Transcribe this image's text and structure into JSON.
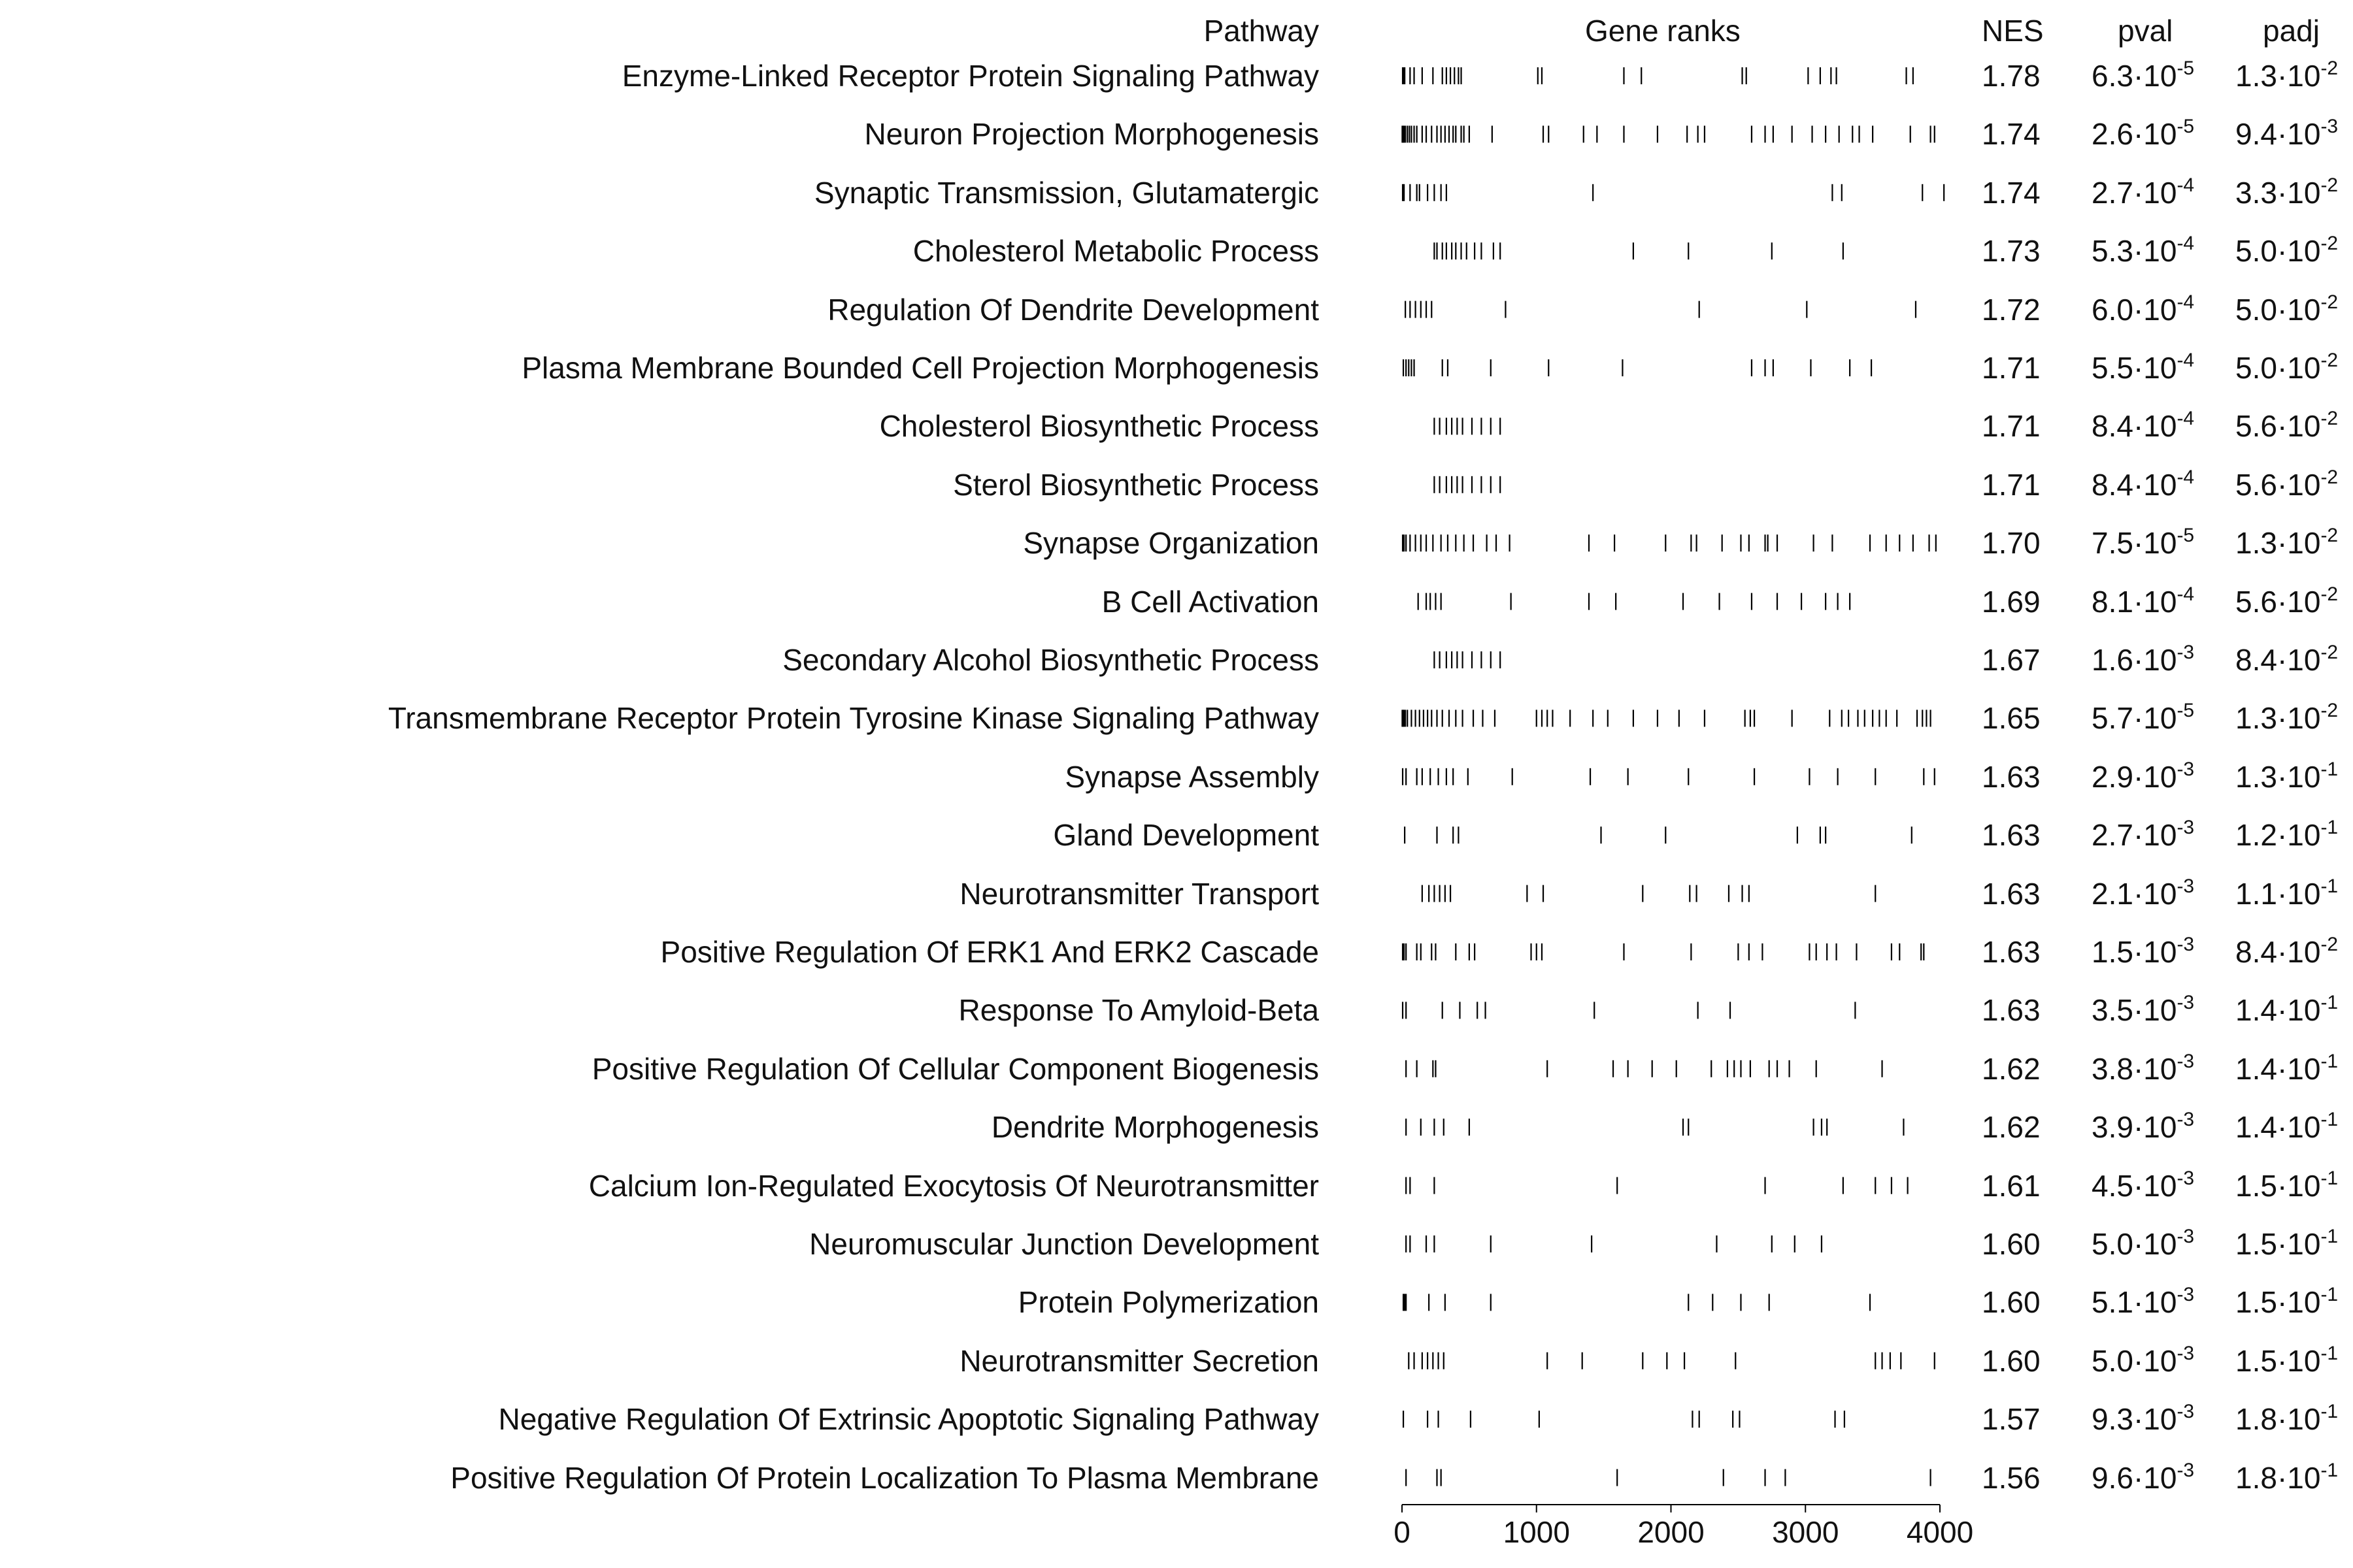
{
  "chart_data": {
    "type": "table",
    "x_axis": {
      "ticks": [
        0,
        1000,
        2000,
        3000,
        4000
      ],
      "xlim": [
        0,
        4000
      ]
    },
    "headers": {
      "pathway": "Pathway",
      "ranks": "Gene ranks",
      "nes": "NES",
      "pval": "pval",
      "padj": "padj"
    },
    "rows": [
      {
        "pathway": "Enzyme-Linked Receptor Protein Signaling Pathway",
        "nes": "1.78",
        "pval": {
          "m": "6.3",
          "e": "-5"
        },
        "padj": {
          "m": "1.3",
          "e": "-2"
        },
        "ranks": [
          5,
          12,
          20,
          60,
          90,
          150,
          230,
          300,
          330,
          360,
          390,
          420,
          440,
          1010,
          1040,
          1650,
          1780,
          2530,
          2560,
          3020,
          3110,
          3190,
          3230,
          3750,
          3800
        ]
      },
      {
        "pathway": "Neuron Projection Morphogenesis",
        "nes": "1.74",
        "pval": {
          "m": "2.6",
          "e": "-5"
        },
        "padj": {
          "m": "9.4",
          "e": "-3"
        },
        "ranks": [
          2,
          8,
          15,
          25,
          40,
          55,
          70,
          90,
          110,
          150,
          180,
          220,
          260,
          290,
          320,
          350,
          380,
          400,
          440,
          460,
          500,
          670,
          1050,
          1090,
          1350,
          1450,
          1650,
          1900,
          2120,
          2200,
          2250,
          2600,
          2700,
          2760,
          2900,
          3050,
          3150,
          3250,
          3350,
          3400,
          3500,
          3780,
          3930,
          3960
        ]
      },
      {
        "pathway": "Synaptic Transmission, Glutamatergic",
        "nes": "1.74",
        "pval": {
          "m": "2.7",
          "e": "-4"
        },
        "padj": {
          "m": "3.3",
          "e": "-2"
        },
        "ranks": [
          5,
          15,
          60,
          110,
          130,
          190,
          240,
          290,
          330,
          1420,
          3200,
          3270,
          3870,
          4030
        ]
      },
      {
        "pathway": "Cholesterol Metabolic Process",
        "nes": "1.73",
        "pval": {
          "m": "5.3",
          "e": "-4"
        },
        "padj": {
          "m": "5.0",
          "e": "-2"
        },
        "ranks": [
          240,
          260,
          300,
          330,
          370,
          400,
          440,
          480,
          540,
          590,
          680,
          730,
          1720,
          2130,
          2750,
          3280
        ]
      },
      {
        "pathway": "Regulation Of Dendrite Development",
        "nes": "1.72",
        "pval": {
          "m": "6.0",
          "e": "-4"
        },
        "padj": {
          "m": "5.0",
          "e": "-2"
        },
        "ranks": [
          25,
          60,
          100,
          140,
          180,
          220,
          770,
          2210,
          3010,
          3820
        ]
      },
      {
        "pathway": "Plasma Membrane Bounded Cell Projection Morphogenesis",
        "nes": "1.71",
        "pval": {
          "m": "5.5",
          "e": "-4"
        },
        "padj": {
          "m": "5.0",
          "e": "-2"
        },
        "ranks": [
          10,
          30,
          50,
          70,
          90,
          300,
          340,
          660,
          1090,
          1640,
          2600,
          2700,
          2760,
          3040,
          3330,
          3490
        ]
      },
      {
        "pathway": "Cholesterol Biosynthetic Process",
        "nes": "1.71",
        "pval": {
          "m": "8.4",
          "e": "-4"
        },
        "padj": {
          "m": "5.6",
          "e": "-2"
        },
        "ranks": [
          240,
          280,
          330,
          370,
          410,
          450,
          520,
          590,
          660,
          730
        ]
      },
      {
        "pathway": "Sterol Biosynthetic Process",
        "nes": "1.71",
        "pval": {
          "m": "8.4",
          "e": "-4"
        },
        "padj": {
          "m": "5.6",
          "e": "-2"
        },
        "ranks": [
          240,
          280,
          330,
          370,
          410,
          450,
          520,
          590,
          660,
          730
        ]
      },
      {
        "pathway": "Synapse Organization",
        "nes": "1.70",
        "pval": {
          "m": "7.5",
          "e": "-5"
        },
        "padj": {
          "m": "1.3",
          "e": "-2"
        },
        "ranks": [
          5,
          15,
          30,
          60,
          100,
          140,
          180,
          230,
          290,
          340,
          400,
          460,
          530,
          630,
          700,
          800,
          1390,
          1580,
          1960,
          2150,
          2190,
          2380,
          2520,
          2580,
          2700,
          2720,
          2790,
          3060,
          3200,
          3480,
          3600,
          3700,
          3800,
          3920,
          3970
        ]
      },
      {
        "pathway": "B Cell Activation",
        "nes": "1.69",
        "pval": {
          "m": "8.1",
          "e": "-4"
        },
        "padj": {
          "m": "5.6",
          "e": "-2"
        },
        "ranks": [
          120,
          180,
          210,
          250,
          290,
          810,
          1390,
          1590,
          2090,
          2360,
          2600,
          2790,
          2970,
          3150,
          3240,
          3330
        ]
      },
      {
        "pathway": "Secondary Alcohol Biosynthetic Process",
        "nes": "1.67",
        "pval": {
          "m": "1.6",
          "e": "-3"
        },
        "padj": {
          "m": "8.4",
          "e": "-2"
        },
        "ranks": [
          240,
          280,
          330,
          370,
          410,
          450,
          520,
          590,
          660,
          730
        ]
      },
      {
        "pathway": "Transmembrane Receptor Protein Tyrosine Kinase Signaling Pathway",
        "nes": "1.65",
        "pval": {
          "m": "5.7",
          "e": "-5"
        },
        "padj": {
          "m": "1.3",
          "e": "-2"
        },
        "ranks": [
          2,
          8,
          15,
          25,
          40,
          70,
          100,
          130,
          160,
          190,
          220,
          260,
          300,
          350,
          400,
          450,
          530,
          600,
          690,
          1000,
          1040,
          1080,
          1120,
          1250,
          1420,
          1530,
          1720,
          1900,
          2060,
          2250,
          2550,
          2590,
          2620,
          2900,
          3180,
          3270,
          3320,
          3390,
          3440,
          3500,
          3550,
          3600,
          3680,
          3830,
          3870,
          3900,
          3930
        ]
      },
      {
        "pathway": "Synapse Assembly",
        "nes": "1.63",
        "pval": {
          "m": "2.9",
          "e": "-3"
        },
        "padj": {
          "m": "1.3",
          "e": "-1"
        },
        "ranks": [
          5,
          30,
          110,
          150,
          210,
          270,
          330,
          380,
          490,
          820,
          1400,
          1680,
          2130,
          2620,
          3030,
          3240,
          3520,
          3880,
          3960
        ]
      },
      {
        "pathway": "Gland Development",
        "nes": "1.63",
        "pval": {
          "m": "2.7",
          "e": "-3"
        },
        "padj": {
          "m": "1.2",
          "e": "-1"
        },
        "ranks": [
          20,
          260,
          380,
          420,
          1480,
          1960,
          2940,
          3110,
          3150,
          3790
        ]
      },
      {
        "pathway": "Neurotransmitter Transport",
        "nes": "1.63",
        "pval": {
          "m": "2.1",
          "e": "-3"
        },
        "padj": {
          "m": "1.1",
          "e": "-1"
        },
        "ranks": [
          150,
          200,
          240,
          280,
          320,
          360,
          930,
          1050,
          1790,
          2140,
          2190,
          2430,
          2530,
          2580,
          3520
        ]
      },
      {
        "pathway": "Positive Regulation Of ERK1 And ERK2 Cascade",
        "nes": "1.63",
        "pval": {
          "m": "1.5",
          "e": "-3"
        },
        "padj": {
          "m": "8.4",
          "e": "-2"
        },
        "ranks": [
          5,
          15,
          30,
          110,
          140,
          220,
          250,
          400,
          500,
          540,
          960,
          1000,
          1040,
          1650,
          2150,
          2500,
          2580,
          2680,
          3030,
          3080,
          3160,
          3230,
          3380,
          3640,
          3700,
          3860,
          3880
        ]
      },
      {
        "pathway": "Response To Amyloid-Beta",
        "nes": "1.63",
        "pval": {
          "m": "3.5",
          "e": "-3"
        },
        "padj": {
          "m": "1.4",
          "e": "-1"
        },
        "ranks": [
          5,
          30,
          300,
          430,
          560,
          620,
          1430,
          2200,
          2440,
          3370
        ]
      },
      {
        "pathway": "Positive Regulation Of Cellular Component Biogenesis",
        "nes": "1.62",
        "pval": {
          "m": "3.8",
          "e": "-3"
        },
        "padj": {
          "m": "1.4",
          "e": "-1"
        },
        "ranks": [
          30,
          110,
          230,
          250,
          1080,
          1570,
          1680,
          1860,
          2040,
          2300,
          2420,
          2470,
          2520,
          2590,
          2730,
          2790,
          2880,
          3080,
          3570
        ]
      },
      {
        "pathway": "Dendrite Morphogenesis",
        "nes": "1.62",
        "pval": {
          "m": "3.9",
          "e": "-3"
        },
        "padj": {
          "m": "1.4",
          "e": "-1"
        },
        "ranks": [
          30,
          140,
          240,
          310,
          500,
          2090,
          2130,
          3060,
          3120,
          3160,
          3730
        ]
      },
      {
        "pathway": "Calcium Ion-Regulated Exocytosis Of Neurotransmitter",
        "nes": "1.61",
        "pval": {
          "m": "4.5",
          "e": "-3"
        },
        "padj": {
          "m": "1.5",
          "e": "-1"
        },
        "ranks": [
          30,
          60,
          240,
          1600,
          2700,
          3280,
          3520,
          3640,
          3760
        ]
      },
      {
        "pathway": "Neuromuscular Junction Development",
        "nes": "1.60",
        "pval": {
          "m": "5.0",
          "e": "-3"
        },
        "padj": {
          "m": "1.5",
          "e": "-1"
        },
        "ranks": [
          30,
          60,
          180,
          240,
          660,
          1410,
          2340,
          2750,
          2920,
          3120
        ]
      },
      {
        "pathway": "Protein Polymerization",
        "nes": "1.60",
        "pval": {
          "m": "5.1",
          "e": "-3"
        },
        "padj": {
          "m": "1.5",
          "e": "-1"
        },
        "ranks": [
          10,
          20,
          30,
          200,
          320,
          660,
          2130,
          2310,
          2520,
          2730,
          3480
        ]
      },
      {
        "pathway": "Neurotransmitter Secretion",
        "nes": "1.60",
        "pval": {
          "m": "5.0",
          "e": "-3"
        },
        "padj": {
          "m": "1.5",
          "e": "-1"
        },
        "ranks": [
          50,
          90,
          150,
          190,
          230,
          270,
          310,
          1080,
          1340,
          1790,
          1970,
          2100,
          2480,
          3520,
          3570,
          3630,
          3710,
          3960
        ]
      },
      {
        "pathway": "Negative Regulation Of Extrinsic Apoptotic Signaling Pathway",
        "nes": "1.57",
        "pval": {
          "m": "9.3",
          "e": "-3"
        },
        "padj": {
          "m": "1.8",
          "e": "-1"
        },
        "ranks": [
          10,
          190,
          270,
          510,
          1020,
          2160,
          2210,
          2460,
          2510,
          3220,
          3290
        ]
      },
      {
        "pathway": "Positive Regulation Of Protein Localization To Plasma Membrane",
        "nes": "1.56",
        "pval": {
          "m": "9.6",
          "e": "-3"
        },
        "padj": {
          "m": "1.8",
          "e": "-1"
        },
        "ranks": [
          30,
          260,
          290,
          1600,
          2390,
          2700,
          2850,
          3930
        ]
      }
    ]
  }
}
